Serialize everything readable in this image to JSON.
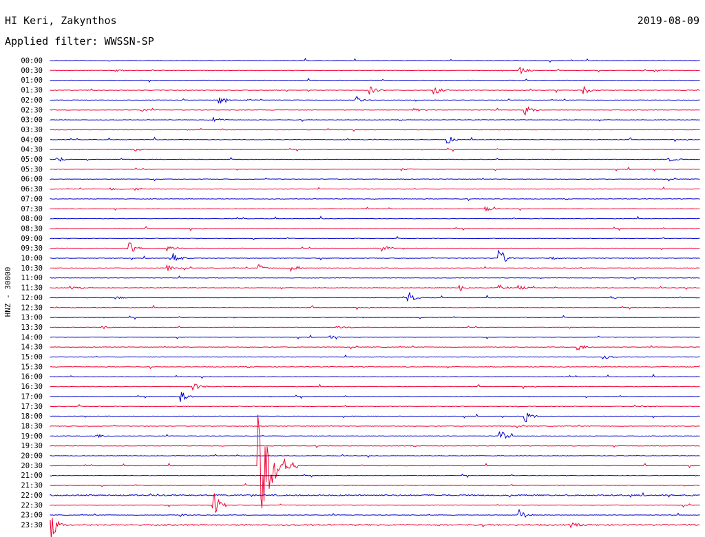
{
  "header": {
    "station": "HI Keri, Zakynthos",
    "date": "2019-08-09",
    "filter": "Applied filter: WWSSN-SP"
  },
  "chart_data": {
    "type": "line",
    "title": "HI Keri, Zakynthos",
    "ylabel": "HNZ - 30000",
    "colors": [
      "#0000cc",
      "#ee0033"
    ],
    "row_labels": [
      "00:00",
      "00:30",
      "01:00",
      "01:30",
      "02:00",
      "02:30",
      "03:00",
      "03:30",
      "04:00",
      "04:30",
      "05:00",
      "05:30",
      "06:00",
      "06:30",
      "07:00",
      "07:30",
      "08:00",
      "08:30",
      "09:00",
      "09:30",
      "10:00",
      "10:30",
      "11:00",
      "11:30",
      "12:00",
      "12:30",
      "13:00",
      "13:30",
      "14:00",
      "14:30",
      "15:00",
      "15:30",
      "16:00",
      "16:30",
      "17:00",
      "17:30",
      "18:00",
      "18:30",
      "19:00",
      "19:30",
      "20:00",
      "20:30",
      "21:00",
      "21:30",
      "22:00",
      "22:30",
      "23:00",
      "23:30"
    ],
    "events": [
      {
        "row": 1,
        "t": 0.72,
        "amp": 6
      },
      {
        "row": 1,
        "t": 0.1,
        "amp": 2
      },
      {
        "row": 1,
        "t": 0.93,
        "amp": 2
      },
      {
        "row": 3,
        "t": 0.49,
        "amp": 6
      },
      {
        "row": 3,
        "t": 0.59,
        "amp": 6
      },
      {
        "row": 3,
        "t": 0.82,
        "amp": 6
      },
      {
        "row": 4,
        "t": 0.26,
        "amp": 9
      },
      {
        "row": 4,
        "t": 0.47,
        "amp": 5
      },
      {
        "row": 4,
        "t": 0.3,
        "amp": 2
      },
      {
        "row": 5,
        "t": 0.73,
        "amp": 7
      },
      {
        "row": 5,
        "t": 0.14,
        "amp": 2
      },
      {
        "row": 5,
        "t": 0.56,
        "amp": 2
      },
      {
        "row": 6,
        "t": 0.25,
        "amp": 4
      },
      {
        "row": 8,
        "t": 0.61,
        "amp": 6
      },
      {
        "row": 9,
        "t": 0.13,
        "amp": 2
      },
      {
        "row": 10,
        "t": 0.01,
        "amp": 4
      },
      {
        "row": 10,
        "t": 0.95,
        "amp": 4
      },
      {
        "row": 11,
        "t": 0.54,
        "amp": 2
      },
      {
        "row": 13,
        "t": 0.09,
        "amp": 2
      },
      {
        "row": 13,
        "t": 0.13,
        "amp": 3
      },
      {
        "row": 15,
        "t": 0.67,
        "amp": 3
      },
      {
        "row": 19,
        "t": 0.12,
        "amp": 9
      },
      {
        "row": 19,
        "t": 0.18,
        "amp": 5
      },
      {
        "row": 19,
        "t": 0.51,
        "amp": 6
      },
      {
        "row": 20,
        "t": 0.19,
        "amp": 7
      },
      {
        "row": 20,
        "t": 0.69,
        "amp": 14
      },
      {
        "row": 20,
        "t": 0.77,
        "amp": 2
      },
      {
        "row": 21,
        "t": 0.18,
        "amp": 4
      },
      {
        "row": 21,
        "t": 0.32,
        "amp": 5
      },
      {
        "row": 21,
        "t": 0.37,
        "amp": 7
      },
      {
        "row": 23,
        "t": 0.03,
        "amp": 2
      },
      {
        "row": 23,
        "t": 0.63,
        "amp": 4
      },
      {
        "row": 23,
        "t": 0.69,
        "amp": 4
      },
      {
        "row": 23,
        "t": 0.72,
        "amp": 4
      },
      {
        "row": 24,
        "t": 0.55,
        "amp": 8
      },
      {
        "row": 24,
        "t": 0.1,
        "amp": 2
      },
      {
        "row": 24,
        "t": 0.86,
        "amp": 2
      },
      {
        "row": 27,
        "t": 0.08,
        "amp": 2
      },
      {
        "row": 27,
        "t": 0.44,
        "amp": 2
      },
      {
        "row": 28,
        "t": 0.43,
        "amp": 2
      },
      {
        "row": 29,
        "t": 0.81,
        "amp": 6
      },
      {
        "row": 30,
        "t": 0.85,
        "amp": 3
      },
      {
        "row": 33,
        "t": 0.22,
        "amp": 5
      },
      {
        "row": 34,
        "t": 0.2,
        "amp": 8
      },
      {
        "row": 36,
        "t": 0.73,
        "amp": 8
      },
      {
        "row": 38,
        "t": 0.07,
        "amp": 3
      },
      {
        "row": 38,
        "t": 0.69,
        "amp": 10
      },
      {
        "row": 41,
        "t": 0.32,
        "amp": 80,
        "len": 0.06
      },
      {
        "row": 45,
        "t": 0.25,
        "amp": 18
      },
      {
        "row": 46,
        "t": 0.72,
        "amp": 9
      },
      {
        "row": 46,
        "t": 0.2,
        "amp": 2
      },
      {
        "row": 47,
        "t": 0.0,
        "amp": 25,
        "len": 0.02
      },
      {
        "row": 47,
        "t": 0.8,
        "amp": 3
      }
    ],
    "noisy_rows": [
      44,
      47
    ]
  }
}
